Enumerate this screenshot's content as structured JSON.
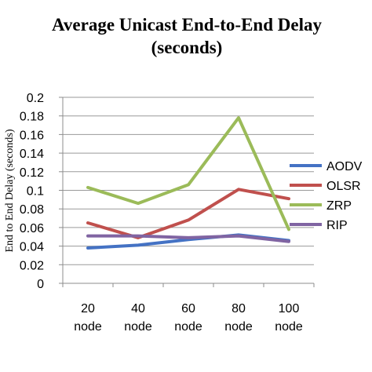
{
  "chart_data": {
    "type": "line",
    "title_line1": "Average Unicast End-to-End Delay",
    "title_line2": "(seconds)",
    "ylabel": "End to End Delay (seconds)",
    "xlabel": "",
    "categories": [
      [
        "20",
        "node"
      ],
      [
        "40",
        "node"
      ],
      [
        "60",
        "node"
      ],
      [
        "80",
        "node"
      ],
      [
        "100",
        "node"
      ]
    ],
    "ylim": [
      0,
      0.2
    ],
    "y_ticks": [
      "0",
      "0.02",
      "0.04",
      "0.06",
      "0.08",
      "0.1",
      "0.12",
      "0.14",
      "0.16",
      "0.18",
      "0.2"
    ],
    "grid": true,
    "legend_position": "right",
    "series": [
      {
        "name": "AODV",
        "color": "#4472c4",
        "values": [
          0.038,
          0.041,
          0.047,
          0.052,
          0.046
        ]
      },
      {
        "name": "OLSR",
        "color": "#c0504d",
        "values": [
          0.065,
          0.049,
          0.068,
          0.101,
          0.091
        ]
      },
      {
        "name": "ZRP",
        "color": "#9bbb59",
        "values": [
          0.103,
          0.086,
          0.106,
          0.178,
          0.058
        ]
      },
      {
        "name": "RIP",
        "color": "#8064a2",
        "values": [
          0.051,
          0.051,
          0.049,
          0.051,
          0.045
        ]
      }
    ]
  }
}
